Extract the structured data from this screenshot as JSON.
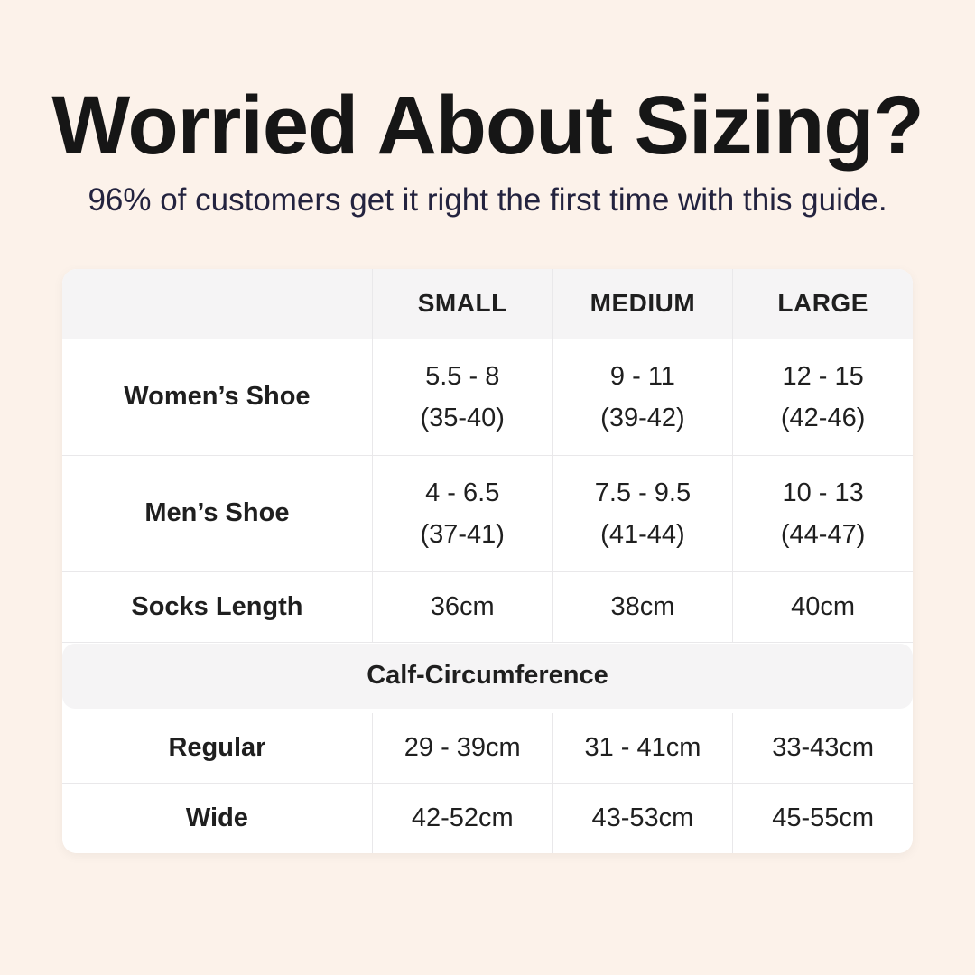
{
  "page": {
    "title": "Worried About Sizing?",
    "subtitle": "96% of customers get it right the first time with this guide."
  },
  "colors": {
    "background": "#fcf2ea",
    "card": "#ffffff",
    "header_band": "#f5f4f5",
    "divider": "#e9e8ea",
    "title_text": "#161616",
    "subtitle_text": "#23233f",
    "body_text": "#1f1f1f"
  },
  "table": {
    "columns": [
      "",
      "SMALL",
      "MEDIUM",
      "LARGE"
    ],
    "rows": [
      {
        "label": "Women’s Shoe",
        "small": [
          "5.5 - 8",
          "(35-40)"
        ],
        "medium": [
          "9 - 11",
          "(39-42)"
        ],
        "large": [
          "12 - 15",
          "(42-46)"
        ]
      },
      {
        "label": "Men’s Shoe",
        "small": [
          "4 - 6.5",
          "(37-41)"
        ],
        "medium": [
          "7.5 - 9.5",
          "(41-44)"
        ],
        "large": [
          "10 - 13",
          "(44-47)"
        ]
      },
      {
        "label": "Socks Length",
        "small": [
          "36cm"
        ],
        "medium": [
          "38cm"
        ],
        "large": [
          "40cm"
        ]
      }
    ],
    "section_header": "Calf-Circumference",
    "section_rows": [
      {
        "label": "Regular",
        "small": [
          "29 - 39cm"
        ],
        "medium": [
          "31 - 41cm"
        ],
        "large": [
          "33-43cm"
        ]
      },
      {
        "label": "Wide",
        "small": [
          "42-52cm"
        ],
        "medium": [
          "43-53cm"
        ],
        "large": [
          "45-55cm"
        ]
      }
    ]
  },
  "chart_data": {
    "type": "table",
    "title": "Worried About Sizing?",
    "subtitle": "96% of customers get it right the first time with this guide.",
    "columns": [
      "",
      "SMALL",
      "MEDIUM",
      "LARGE"
    ],
    "rows": [
      [
        "Women’s Shoe",
        "5.5 - 8 (35-40)",
        "9 - 11 (39-42)",
        "12 - 15 (42-46)"
      ],
      [
        "Men’s Shoe",
        "4 - 6.5 (37-41)",
        "7.5 - 9.5 (41-44)",
        "10 - 13 (44-47)"
      ],
      [
        "Socks Length",
        "36cm",
        "38cm",
        "40cm"
      ],
      [
        "Calf-Circumference",
        "",
        "",
        ""
      ],
      [
        "Regular",
        "29 - 39cm",
        "31 - 41cm",
        "33-43cm"
      ],
      [
        "Wide",
        "42-52cm",
        "43-53cm",
        "45-55cm"
      ]
    ]
  }
}
